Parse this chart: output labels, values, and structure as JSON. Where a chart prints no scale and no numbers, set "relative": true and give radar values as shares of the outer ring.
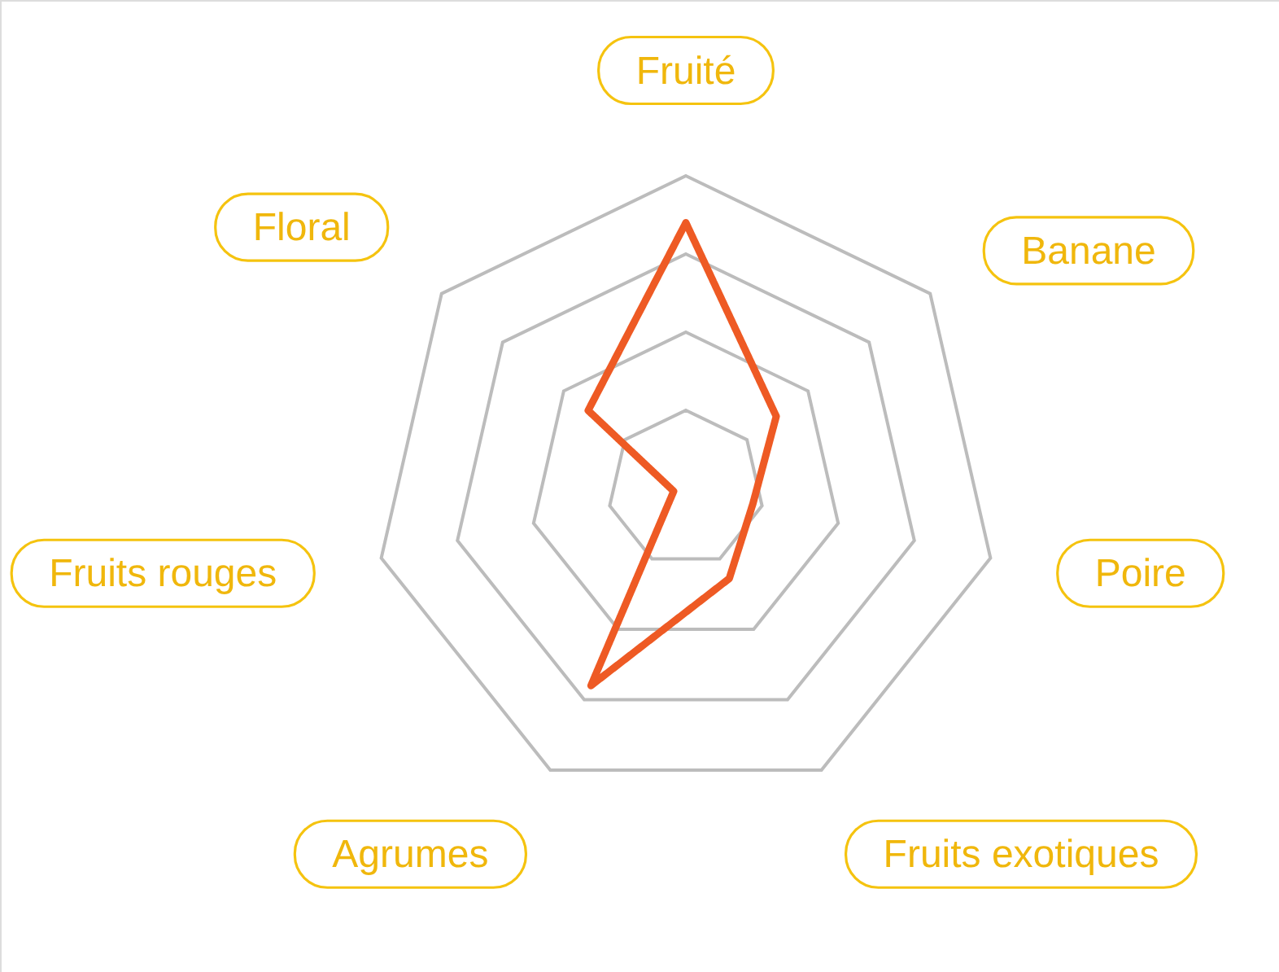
{
  "chart_data": {
    "type": "radar",
    "relative": true,
    "grid": true,
    "line_style": "solid",
    "categories": [
      "Fruité",
      "Banane",
      "Poire",
      "Fruits exotiques",
      "Agrumes",
      "Fruits rouges",
      "Floral"
    ],
    "series": [
      {
        "color": "#ee5a24",
        "values": [
          0.85,
          0.37,
          0.22,
          0.32,
          0.7,
          0.04,
          0.4
        ]
      }
    ]
  }
}
